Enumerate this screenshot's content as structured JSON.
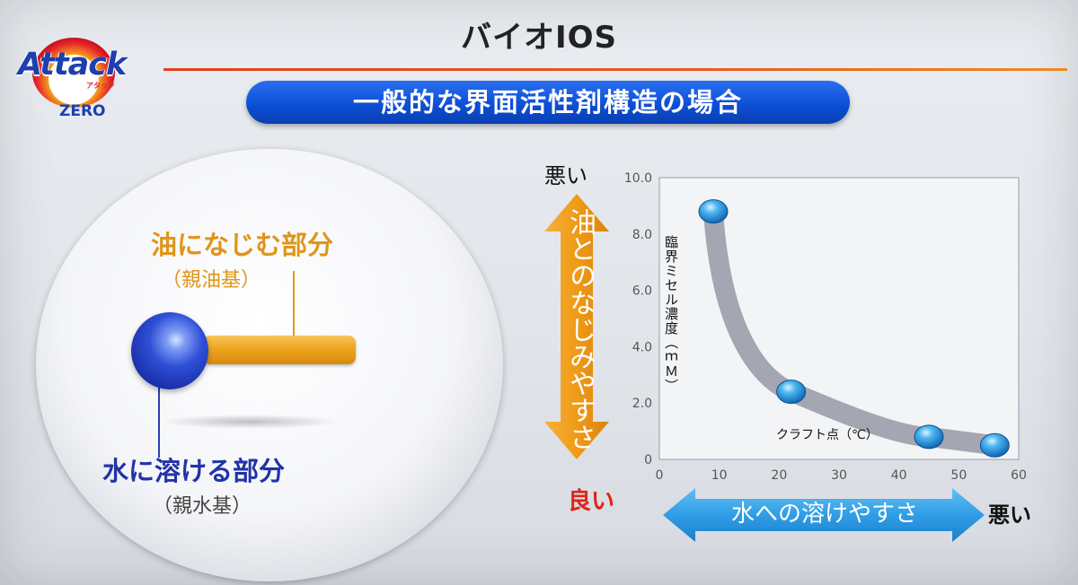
{
  "logo": {
    "word": "Attack",
    "sub": "アタック",
    "zero": "ZERO"
  },
  "title": "バイオIOS",
  "subtitle": "一般的な界面活性剤構造の場合",
  "molecule": {
    "oil_label": "油になじむ部分",
    "oil_sub": "（親油基）",
    "water_label": "水に溶ける部分",
    "water_sub": "（親水基）"
  },
  "axes_annotations": {
    "vertical_top": "悪い",
    "vertical_arrow": "油とのなじみやすさ",
    "horizontal_left": "良い",
    "horizontal_arrow": "水への溶けやすさ",
    "horizontal_right": "悪い"
  },
  "colors": {
    "title_rule": "#e0401c",
    "pill": "#0d4fd6",
    "oil": "#f0a51f",
    "water": "#1a2fa8",
    "good": "#e02418",
    "h_arrow": "#39a6ea"
  },
  "chart_data": {
    "type": "scatter",
    "title": "",
    "xlabel": "クラフト点（℃）",
    "ylabel": "臨界ミセル濃度（ｍＭ）",
    "xlim": [
      0,
      60
    ],
    "ylim": [
      0,
      10
    ],
    "x_ticks": [
      "0",
      "10",
      "20",
      "30",
      "40",
      "50",
      "60"
    ],
    "y_ticks": [
      "0",
      "2.0",
      "4.0",
      "6.0",
      "8.0",
      "10.0"
    ],
    "grid": false,
    "series": [
      {
        "x": [
          9,
          22,
          45,
          56
        ],
        "y": [
          8.8,
          2.4,
          0.8,
          0.5
        ]
      }
    ]
  }
}
